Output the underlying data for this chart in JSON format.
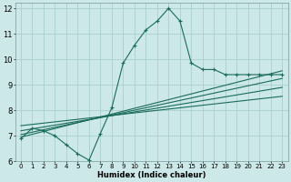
{
  "xlabel": "Humidex (Indice chaleur)",
  "bg_color": "#cce8e8",
  "grid_color": "#aacfcf",
  "line_color": "#1a6b5a",
  "xlim": [
    -0.5,
    23.5
  ],
  "ylim": [
    6,
    12.2
  ],
  "xticks": [
    0,
    1,
    2,
    3,
    4,
    5,
    6,
    7,
    8,
    9,
    10,
    11,
    12,
    13,
    14,
    15,
    16,
    17,
    18,
    19,
    20,
    21,
    22,
    23
  ],
  "yticks": [
    6,
    7,
    8,
    9,
    10,
    11,
    12
  ],
  "main_line_x": [
    0,
    1,
    2,
    3,
    4,
    5,
    6,
    7,
    8,
    9,
    10,
    11,
    12,
    13,
    14,
    15,
    16,
    17,
    18,
    19,
    20,
    21,
    22,
    23
  ],
  "main_line_y": [
    6.9,
    7.3,
    7.2,
    7.0,
    6.65,
    6.3,
    6.05,
    7.1,
    8.1,
    9.85,
    10.55,
    11.15,
    11.5,
    12.0,
    11.5,
    9.85,
    9.6,
    9.6,
    9.4,
    9.4,
    9.4,
    9.4,
    9.4,
    9.4
  ],
  "trend1_x": [
    0,
    23
  ],
  "trend1_y": [
    6.95,
    9.55
  ],
  "trend2_x": [
    0,
    23
  ],
  "trend2_y": [
    7.05,
    9.25
  ],
  "trend3_x": [
    0,
    23
  ],
  "trend3_y": [
    7.2,
    8.9
  ],
  "trend4_x": [
    0,
    23
  ],
  "trend4_y": [
    7.4,
    8.55
  ]
}
